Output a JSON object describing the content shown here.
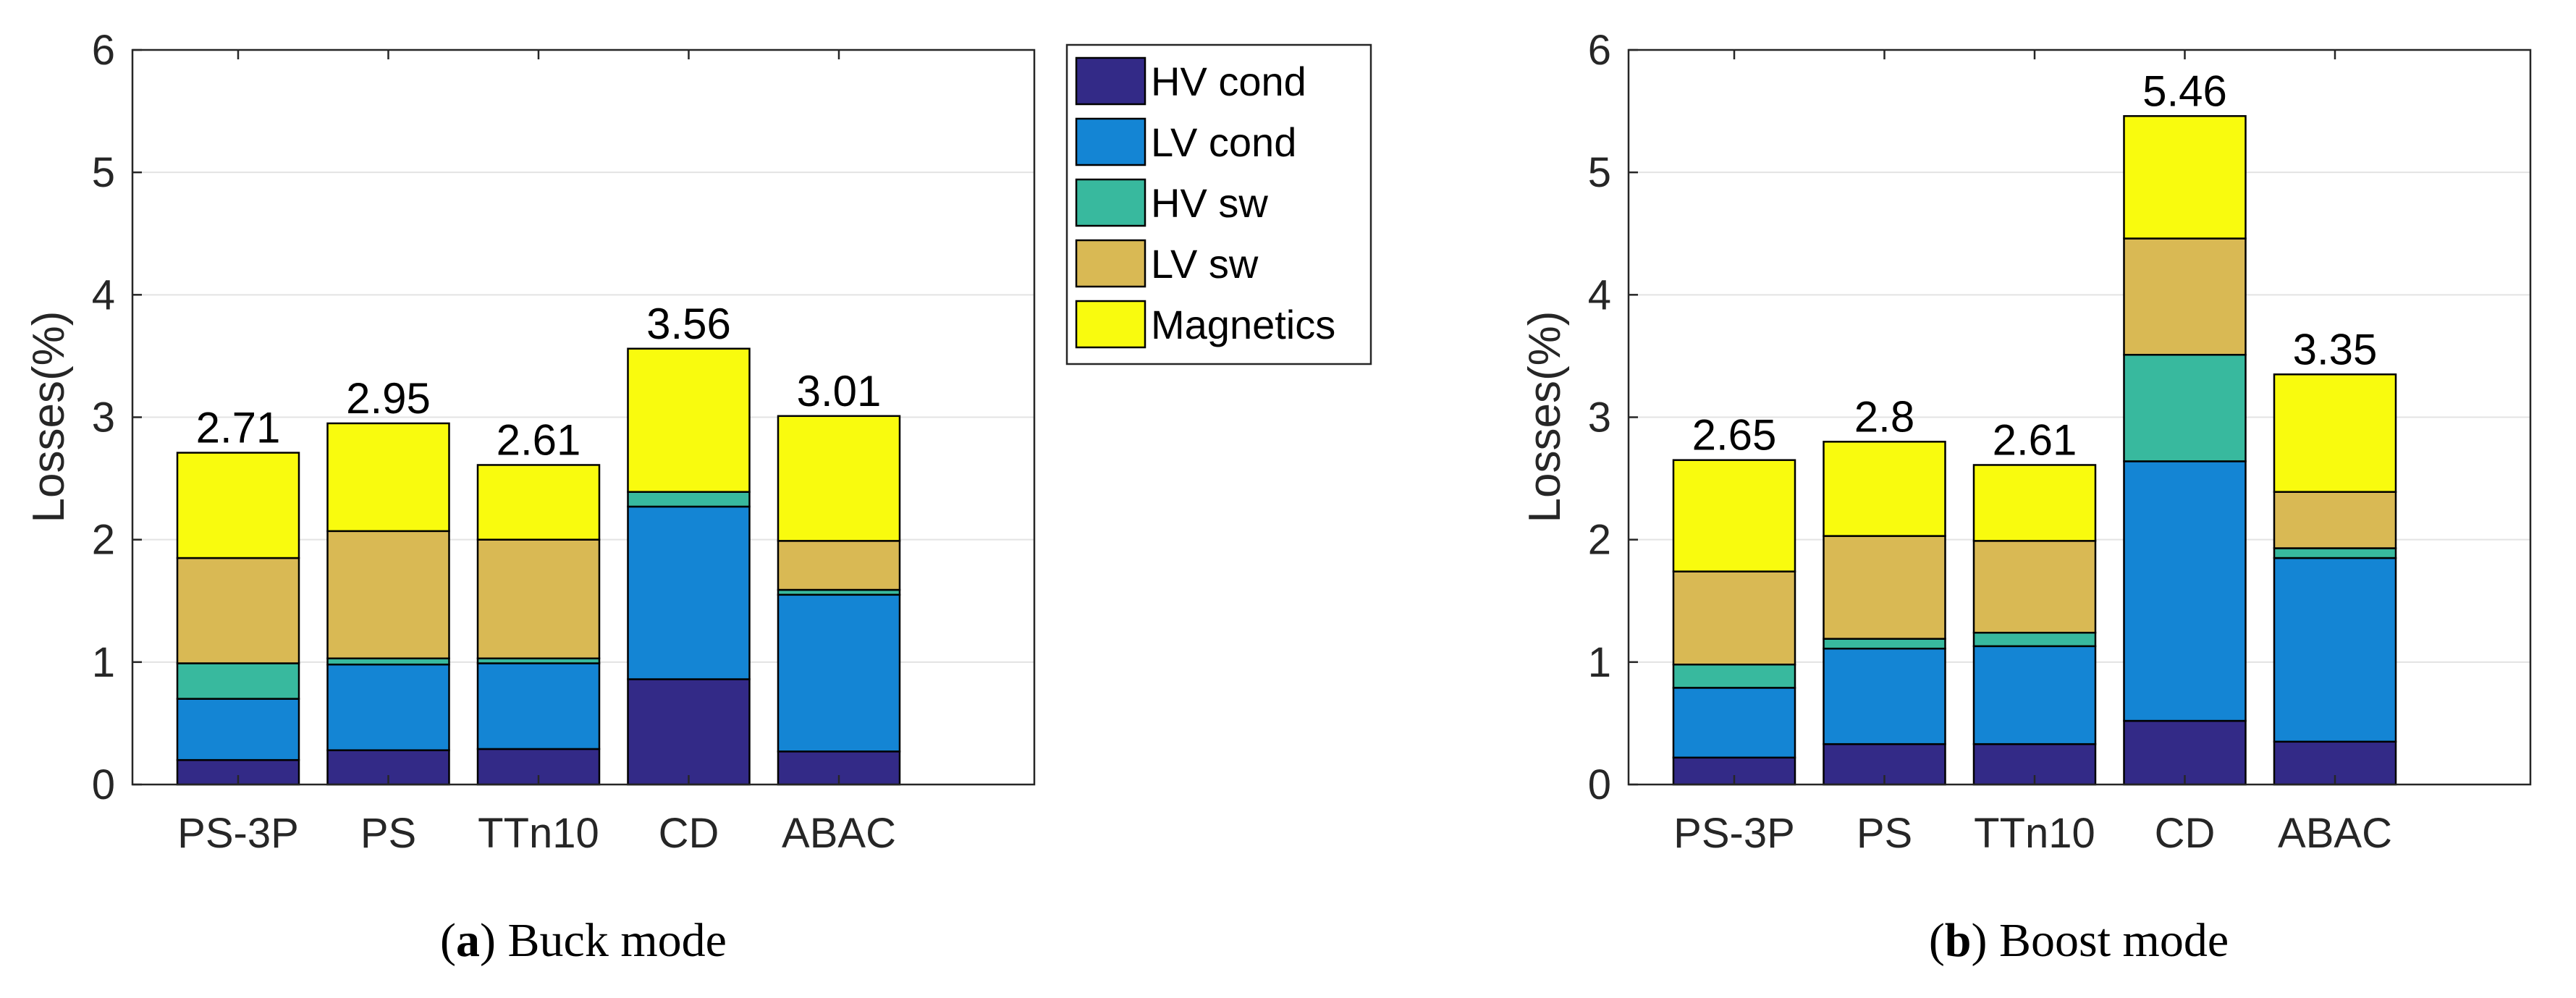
{
  "series_colors": {
    "HV cond": "#332a87",
    "LV cond": "#1485d4",
    "HV sw": "#38b99e",
    "LV sw": "#d9b954",
    "Magnetics": "#f9fb0e"
  },
  "chart_data": [
    {
      "type": "bar",
      "stacked": true,
      "ylabel": "Losses(%)",
      "ylim": [
        0,
        6
      ],
      "yticks": [
        0,
        1,
        2,
        3,
        4,
        5,
        6
      ],
      "grid": true,
      "categories": [
        "PS-3P",
        "PS",
        "TTn10",
        "CD",
        "ABAC"
      ],
      "series": [
        {
          "name": "HV cond",
          "values": [
            0.2,
            0.28,
            0.29,
            0.86,
            0.27
          ]
        },
        {
          "name": "LV cond",
          "values": [
            0.5,
            0.7,
            0.7,
            1.41,
            1.28
          ]
        },
        {
          "name": "HV sw",
          "values": [
            0.29,
            0.05,
            0.04,
            0.12,
            0.04
          ]
        },
        {
          "name": "LV sw",
          "values": [
            0.86,
            1.04,
            0.97,
            0.0,
            0.4
          ]
        },
        {
          "name": "Magnetics",
          "values": [
            0.86,
            0.88,
            0.61,
            1.17,
            1.02
          ]
        }
      ],
      "totals": [
        "2.71",
        "2.95",
        "2.61",
        "3.56",
        "3.01"
      ],
      "caption_label": "a",
      "caption_text": "Buck mode",
      "legend": {
        "position": "right-outside",
        "entries": [
          "HV cond",
          "LV cond",
          "HV sw",
          "LV sw",
          "Magnetics"
        ]
      }
    },
    {
      "type": "bar",
      "stacked": true,
      "ylabel": "Losses(%)",
      "ylim": [
        0,
        6
      ],
      "yticks": [
        0,
        1,
        2,
        3,
        4,
        5,
        6
      ],
      "grid": true,
      "categories": [
        "PS-3P",
        "PS",
        "TTn10",
        "CD",
        "ABAC"
      ],
      "series": [
        {
          "name": "HV cond",
          "values": [
            0.22,
            0.33,
            0.33,
            0.52,
            0.35
          ]
        },
        {
          "name": "LV cond",
          "values": [
            0.57,
            0.78,
            0.8,
            2.12,
            1.5
          ]
        },
        {
          "name": "HV sw",
          "values": [
            0.19,
            0.08,
            0.11,
            0.87,
            0.08
          ]
        },
        {
          "name": "LV sw",
          "values": [
            0.76,
            0.84,
            0.75,
            0.95,
            0.46
          ]
        },
        {
          "name": "Magnetics",
          "values": [
            0.91,
            0.77,
            0.62,
            1.0,
            0.96
          ]
        }
      ],
      "totals": [
        "2.65",
        "2.8",
        "2.61",
        "5.46",
        "3.35"
      ],
      "caption_label": "b",
      "caption_text": "Boost mode"
    }
  ]
}
